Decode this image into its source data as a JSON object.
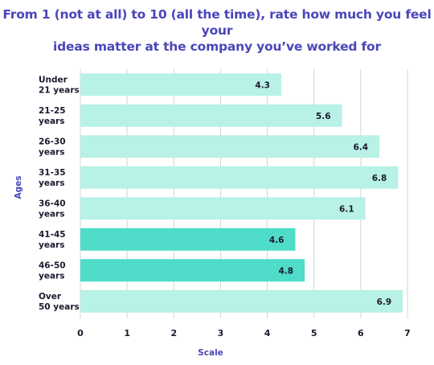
{
  "title_lines": [
    "From 1 (not at all) to 10 (all the time), rate how much you feel your",
    "ideas matter at the company you’ve worked for"
  ],
  "colors": {
    "title": "#4b46b8",
    "bar_light": "#b8f1e6",
    "bar_highlight": "#4fdcc8",
    "grid": "#d4d4d4",
    "text": "#1a1a2e"
  },
  "chart_data": {
    "type": "bar",
    "orientation": "horizontal",
    "title": "From 1 (not at all) to 10 (all the time), rate how much you feel your ideas matter at the company you’ve worked for",
    "categories": [
      [
        "Under",
        "21 years"
      ],
      [
        "21-25",
        "years"
      ],
      [
        "26-30",
        "years"
      ],
      [
        "31-35",
        "years"
      ],
      [
        "36-40",
        "years"
      ],
      [
        "41-45",
        "years"
      ],
      [
        "46-50",
        "years"
      ],
      [
        "Over",
        "50 years"
      ]
    ],
    "values": [
      4.3,
      5.6,
      6.4,
      6.8,
      6.1,
      4.6,
      4.8,
      6.9
    ],
    "value_labels": [
      "4.3",
      "5.6",
      "6.4",
      "6.8",
      "6.1",
      "4.6",
      "4.8",
      "6.9"
    ],
    "highlighted": [
      false,
      false,
      false,
      false,
      false,
      true,
      true,
      false
    ],
    "xlabel": "Scale",
    "ylabel": "Ages",
    "xlim": [
      0,
      7
    ],
    "xticks": [
      "0",
      "1",
      "2",
      "3",
      "4",
      "5",
      "6",
      "7"
    ],
    "grid": "vertical"
  }
}
